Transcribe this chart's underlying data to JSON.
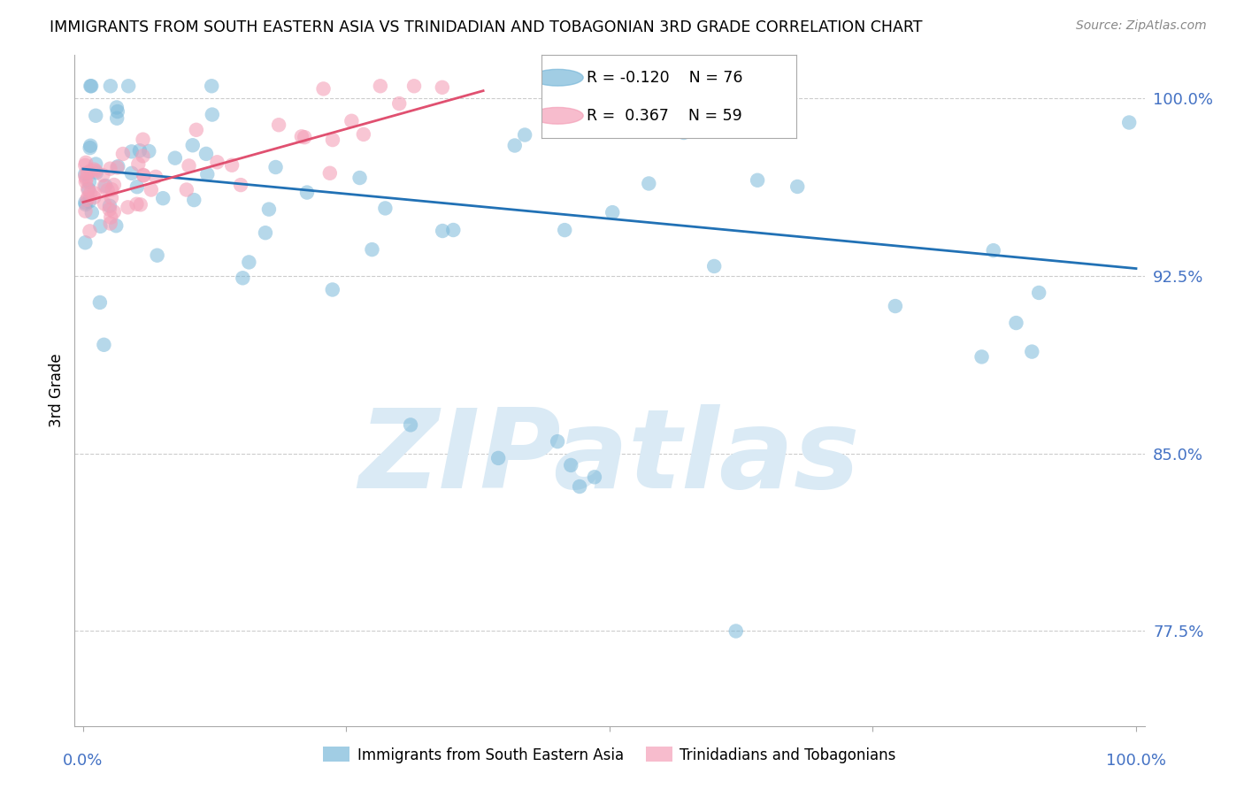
{
  "title": "IMMIGRANTS FROM SOUTH EASTERN ASIA VS TRINIDADIAN AND TOBAGONIAN 3RD GRADE CORRELATION CHART",
  "source": "Source: ZipAtlas.com",
  "ylabel": "3rd Grade",
  "ytick_labels": [
    "100.0%",
    "92.5%",
    "85.0%",
    "77.5%"
  ],
  "ytick_values": [
    1.0,
    0.925,
    0.85,
    0.775
  ],
  "ymin": 0.735,
  "ymax": 1.018,
  "xmin": -0.008,
  "xmax": 1.008,
  "legend_R1": "-0.120",
  "legend_N1": "76",
  "legend_R2": "0.367",
  "legend_N2": "59",
  "blue_color": "#7ab8d9",
  "pink_color": "#f4a0b8",
  "trendline_blue": "#2171b5",
  "trendline_pink": "#e05070",
  "watermark": "ZIPatlas",
  "watermark_color": "#daeaf5",
  "blue_line_x": [
    0.0,
    1.0
  ],
  "blue_line_y": [
    0.97,
    0.928
  ],
  "pink_line_x": [
    0.0,
    0.38
  ],
  "pink_line_y": [
    0.956,
    1.003
  ],
  "xtick_positions": [
    0.0,
    0.25,
    0.5,
    0.75,
    1.0
  ]
}
